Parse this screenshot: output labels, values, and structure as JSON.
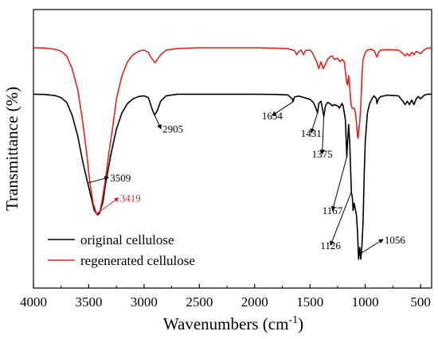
{
  "chart_data": {
    "type": "line",
    "xlabel": "Wavenumbers (cm",
    "xlabel_superscript": "-1",
    "xlabel_close": ")",
    "ylabel": "Transmittance (%)",
    "xlim": [
      4000,
      400
    ],
    "x_reversed": true,
    "xticks": [
      4000,
      3500,
      3000,
      2500,
      2000,
      1500,
      1000,
      500
    ],
    "xtick_labels": [
      "4000",
      "3500",
      "3000",
      "2500",
      "2000",
      "1500",
      "1000",
      "500"
    ],
    "y_ticks_shown": false,
    "ylim": [
      0,
      100
    ],
    "legend_position": "bottom-left",
    "series": [
      {
        "name": "original cellulose",
        "color": "#000000",
        "points": [
          [
            4000,
            80
          ],
          [
            3900,
            79.9
          ],
          [
            3800,
            79.4
          ],
          [
            3750,
            78.5
          ],
          [
            3700,
            76.5
          ],
          [
            3650,
            71
          ],
          [
            3600,
            62
          ],
          [
            3550,
            50
          ],
          [
            3500,
            40
          ],
          [
            3450,
            30
          ],
          [
            3420,
            28
          ],
          [
            3400,
            29
          ],
          [
            3370,
            34
          ],
          [
            3350,
            41
          ],
          [
            3300,
            54
          ],
          [
            3250,
            65
          ],
          [
            3200,
            72
          ],
          [
            3150,
            76
          ],
          [
            3100,
            78
          ],
          [
            3050,
            79
          ],
          [
            3000,
            79.3
          ],
          [
            2960,
            78.5
          ],
          [
            2930,
            74
          ],
          [
            2905,
            71
          ],
          [
            2880,
            73
          ],
          [
            2850,
            77
          ],
          [
            2800,
            79.3
          ],
          [
            2700,
            80
          ],
          [
            2500,
            80
          ],
          [
            2200,
            80
          ],
          [
            2000,
            80
          ],
          [
            1800,
            79.9
          ],
          [
            1700,
            79.7
          ],
          [
            1660,
            78
          ],
          [
            1654,
            76.7
          ],
          [
            1640,
            78.8
          ],
          [
            1600,
            79.2
          ],
          [
            1550,
            78.5
          ],
          [
            1500,
            77.8
          ],
          [
            1470,
            76.5
          ],
          [
            1455,
            75
          ],
          [
            1431,
            72
          ],
          [
            1420,
            76
          ],
          [
            1400,
            77
          ],
          [
            1375,
            70.5
          ],
          [
            1360,
            75
          ],
          [
            1340,
            76.5
          ],
          [
            1320,
            76
          ],
          [
            1300,
            75
          ],
          [
            1280,
            75.5
          ],
          [
            1250,
            75
          ],
          [
            1235,
            74
          ],
          [
            1210,
            76
          ],
          [
            1200,
            75
          ],
          [
            1180,
            69
          ],
          [
            1167,
            53
          ],
          [
            1162,
            58
          ],
          [
            1150,
            67
          ],
          [
            1140,
            59
          ],
          [
            1126,
            38
          ],
          [
            1116,
            35
          ],
          [
            1110,
            30
          ],
          [
            1100,
            33
          ],
          [
            1080,
            28
          ],
          [
            1070,
            21
          ],
          [
            1060,
            9
          ],
          [
            1056,
            11
          ],
          [
            1050,
            14
          ],
          [
            1040,
            9
          ],
          [
            1030,
            15
          ],
          [
            1020,
            25
          ],
          [
            1010,
            45
          ],
          [
            1000,
            60
          ],
          [
            980,
            72
          ],
          [
            960,
            76
          ],
          [
            940,
            78
          ],
          [
            920,
            79.3
          ],
          [
            900,
            78
          ],
          [
            895,
            76
          ],
          [
            880,
            78
          ],
          [
            860,
            79
          ],
          [
            800,
            79.6
          ],
          [
            700,
            79.3
          ],
          [
            660,
            77
          ],
          [
            640,
            75.5
          ],
          [
            620,
            77
          ],
          [
            600,
            75.5
          ],
          [
            580,
            77.5
          ],
          [
            560,
            75.5
          ],
          [
            540,
            78
          ],
          [
            520,
            79
          ],
          [
            500,
            78
          ],
          [
            470,
            79.5
          ],
          [
            440,
            80
          ],
          [
            400,
            80
          ]
        ]
      },
      {
        "name": "regenerated cellulose",
        "color": "#e6211b",
        "points": [
          [
            4000,
            100
          ],
          [
            3900,
            99.9
          ],
          [
            3800,
            99.3
          ],
          [
            3750,
            98.5
          ],
          [
            3700,
            96.5
          ],
          [
            3650,
            91
          ],
          [
            3600,
            82
          ],
          [
            3560,
            70
          ],
          [
            3520,
            55
          ],
          [
            3490,
            42
          ],
          [
            3460,
            33
          ],
          [
            3430,
            28.5
          ],
          [
            3400,
            29.5
          ],
          [
            3380,
            34
          ],
          [
            3350,
            43
          ],
          [
            3320,
            54
          ],
          [
            3280,
            67
          ],
          [
            3250,
            78
          ],
          [
            3200,
            88
          ],
          [
            3150,
            94
          ],
          [
            3100,
            97
          ],
          [
            3050,
            98.5
          ],
          [
            3000,
            99
          ],
          [
            2960,
            98
          ],
          [
            2940,
            96
          ],
          [
            2900,
            93.5
          ],
          [
            2880,
            95
          ],
          [
            2850,
            97
          ],
          [
            2800,
            99
          ],
          [
            2700,
            99.7
          ],
          [
            2500,
            100
          ],
          [
            2200,
            100
          ],
          [
            2000,
            100
          ],
          [
            1800,
            99.8
          ],
          [
            1700,
            99.6
          ],
          [
            1640,
            98.8
          ],
          [
            1620,
            97
          ],
          [
            1600,
            98.5
          ],
          [
            1580,
            99
          ],
          [
            1560,
            97
          ],
          [
            1540,
            98.8
          ],
          [
            1500,
            99
          ],
          [
            1480,
            98
          ],
          [
            1440,
            94
          ],
          [
            1420,
            91
          ],
          [
            1400,
            94
          ],
          [
            1380,
            91
          ],
          [
            1360,
            93
          ],
          [
            1340,
            95
          ],
          [
            1320,
            96
          ],
          [
            1300,
            96.5
          ],
          [
            1280,
            95
          ],
          [
            1250,
            95.5
          ],
          [
            1230,
            94
          ],
          [
            1210,
            95
          ],
          [
            1190,
            94
          ],
          [
            1180,
            90
          ],
          [
            1168,
            85
          ],
          [
            1160,
            84
          ],
          [
            1150,
            88
          ],
          [
            1140,
            83
          ],
          [
            1130,
            76
          ],
          [
            1120,
            74
          ],
          [
            1110,
            74
          ],
          [
            1100,
            74
          ],
          [
            1090,
            72
          ],
          [
            1080,
            68
          ],
          [
            1070,
            62
          ],
          [
            1065,
            61
          ],
          [
            1060,
            64
          ],
          [
            1050,
            68
          ],
          [
            1040,
            75
          ],
          [
            1030,
            88
          ],
          [
            1020,
            95
          ],
          [
            1000,
            98
          ],
          [
            980,
            99
          ],
          [
            950,
            99.4
          ],
          [
            920,
            98.8
          ],
          [
            895,
            96
          ],
          [
            880,
            98
          ],
          [
            860,
            99
          ],
          [
            800,
            99.2
          ],
          [
            700,
            99
          ],
          [
            660,
            97.5
          ],
          [
            640,
            96.5
          ],
          [
            620,
            97.5
          ],
          [
            600,
            96.5
          ],
          [
            580,
            98
          ],
          [
            560,
            97
          ],
          [
            540,
            98.5
          ],
          [
            500,
            97.5
          ],
          [
            470,
            99
          ],
          [
            440,
            99.8
          ],
          [
            400,
            100
          ]
        ]
      }
    ],
    "annotations": [
      {
        "text": "2905",
        "x": 2905,
        "color": "#000000"
      },
      {
        "text": "1654",
        "x": 1654,
        "color": "#000000"
      },
      {
        "text": "1431",
        "x": 1431,
        "color": "#000000"
      },
      {
        "text": "1375",
        "x": 1375,
        "color": "#000000"
      },
      {
        "text": "1167",
        "x": 1167,
        "color": "#000000"
      },
      {
        "text": "1126",
        "x": 1126,
        "color": "#000000"
      },
      {
        "text": "1056",
        "x": 1056,
        "color": "#000000"
      },
      {
        "text": "3419",
        "x": 3419,
        "color": "#e6211b"
      },
      {
        "text": "3509",
        "x": 3509,
        "color": "#000000"
      }
    ]
  }
}
